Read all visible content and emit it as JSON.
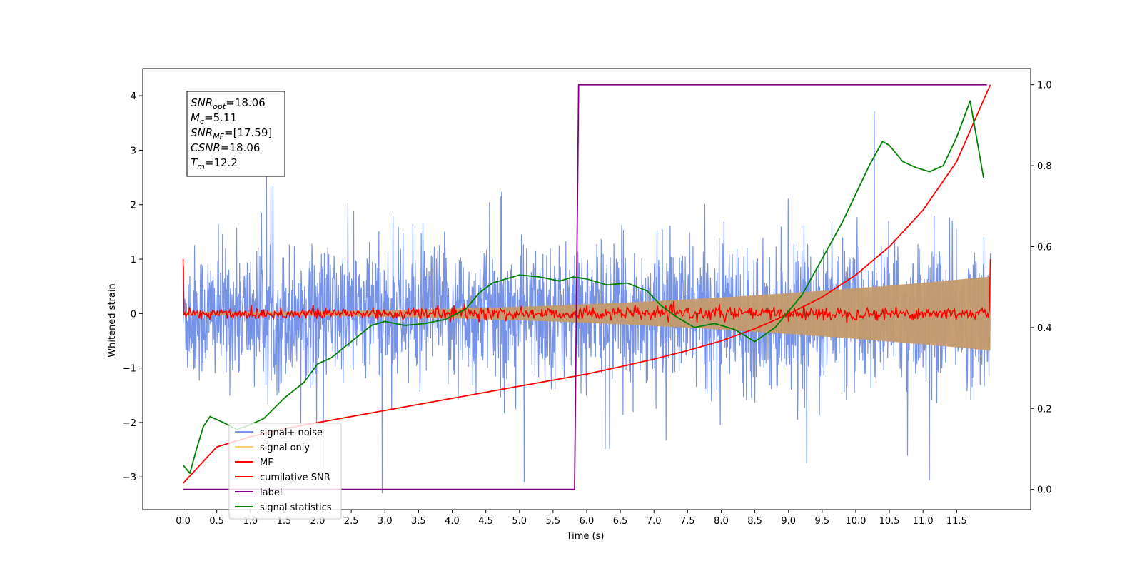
{
  "chart_data": {
    "type": "line",
    "xlabel": "Time (s)",
    "ylabel": "Whitened strain",
    "xlim": [
      -0.6,
      12.6
    ],
    "ylim": [
      -3.6,
      4.5
    ],
    "y2lim": [
      -0.05,
      1.04
    ],
    "x_ticks": [
      0.0,
      0.5,
      1.0,
      1.5,
      2.0,
      2.5,
      3.0,
      3.5,
      4.0,
      4.5,
      5.0,
      5.5,
      6.0,
      6.5,
      7.0,
      7.5,
      8.0,
      8.5,
      9.0,
      9.5,
      10.0,
      10.5,
      11.0,
      11.5
    ],
    "x_tick_labels": [
      "0.0",
      "0.5",
      "1.0",
      "1.5",
      "2.0",
      "2.5",
      "3.0",
      "3.5",
      "4.0",
      "4.5",
      "5.0",
      "5.5",
      "6.0",
      "6.5",
      "7.0",
      "7.5",
      "8.0",
      "8.5",
      "9.0",
      "9.5",
      "10.0",
      "10.5",
      "11.0",
      "11.5"
    ],
    "y_ticks": [
      -3,
      -2,
      -1,
      0,
      1,
      2,
      3,
      4
    ],
    "y_tick_labels": [
      "−3",
      "−2",
      "−1",
      "0",
      "1",
      "2",
      "3",
      "4"
    ],
    "y2_ticks": [
      0.0,
      0.2,
      0.4,
      0.6,
      0.8,
      1.0
    ],
    "y2_tick_labels": [
      "0.0",
      "0.2",
      "0.4",
      "0.6",
      "0.8",
      "1.0"
    ],
    "annotation": [
      {
        "name": "SNR",
        "sub": "opt",
        "value": "=18.06"
      },
      {
        "name": "M",
        "sub": "c",
        "value": "=5.11"
      },
      {
        "name": "SNR",
        "sub": "MF",
        "value": "=[17.59]"
      },
      {
        "name": "CSNR",
        "sub": "",
        "value": "=18.06"
      },
      {
        "name": "T",
        "sub": "m",
        "value": "=12.2"
      }
    ],
    "legend_position": "lower-left",
    "series": [
      {
        "name": "signal+ noise",
        "color": "#6f8de8",
        "axis": "left",
        "kind": "noise",
        "x_range": [
          0,
          12.0
        ],
        "typical_band": [
          -1.4,
          1.4
        ],
        "peak_range": [
          -3.3,
          4.2
        ]
      },
      {
        "name": "signal only",
        "color": "#c49a6c",
        "axis": "left",
        "kind": "chirp",
        "x_range": [
          0,
          12.0
        ],
        "amplitude_start": 0.03,
        "amplitude_end": 0.68
      },
      {
        "name": "MF",
        "color": "#ff0000",
        "axis": "left",
        "kind": "mf",
        "x_range": [
          0,
          12.0
        ],
        "edge_value": 1.0,
        "noise_amplitude": 0.06
      },
      {
        "name": "cumilative SNR",
        "color": "#ff0000",
        "axis": "right",
        "x": [
          0.0,
          0.5,
          1.0,
          1.5,
          2.0,
          2.5,
          3.0,
          3.5,
          4.0,
          4.5,
          5.0,
          5.5,
          6.0,
          6.5,
          7.0,
          7.5,
          8.0,
          8.5,
          9.0,
          9.5,
          10.0,
          10.5,
          11.0,
          11.5,
          12.0
        ],
        "values": [
          0.015,
          0.105,
          0.13,
          0.15,
          0.165,
          0.18,
          0.195,
          0.21,
          0.225,
          0.24,
          0.255,
          0.27,
          0.285,
          0.303,
          0.322,
          0.343,
          0.367,
          0.397,
          0.433,
          0.475,
          0.53,
          0.6,
          0.69,
          0.81,
          1.0
        ]
      },
      {
        "name": "label",
        "color": "#800080",
        "axis": "right",
        "x": [
          0.0,
          5.82,
          5.88,
          11.95
        ],
        "values": [
          0.0,
          0.0,
          1.0,
          1.0
        ]
      },
      {
        "name": "signal statistics",
        "color": "#008000",
        "axis": "right",
        "x": [
          0.0,
          0.1,
          0.2,
          0.3,
          0.4,
          0.6,
          0.8,
          1.0,
          1.2,
          1.5,
          1.8,
          2.0,
          2.2,
          2.5,
          2.8,
          3.0,
          3.3,
          3.6,
          3.9,
          4.2,
          4.4,
          4.6,
          4.8,
          5.0,
          5.3,
          5.6,
          5.8,
          6.0,
          6.3,
          6.6,
          6.9,
          7.1,
          7.3,
          7.6,
          7.9,
          8.2,
          8.5,
          8.8,
          9.0,
          9.2,
          9.4,
          9.6,
          9.8,
          10.0,
          10.2,
          10.4,
          10.5,
          10.7,
          10.9,
          11.1,
          11.3,
          11.5,
          11.7,
          11.9
        ],
        "values": [
          0.06,
          0.04,
          0.1,
          0.155,
          0.18,
          0.165,
          0.148,
          0.16,
          0.175,
          0.225,
          0.265,
          0.31,
          0.325,
          0.365,
          0.405,
          0.415,
          0.405,
          0.41,
          0.42,
          0.445,
          0.485,
          0.51,
          0.52,
          0.53,
          0.525,
          0.515,
          0.525,
          0.52,
          0.505,
          0.51,
          0.49,
          0.455,
          0.43,
          0.4,
          0.41,
          0.395,
          0.365,
          0.4,
          0.44,
          0.48,
          0.54,
          0.6,
          0.66,
          0.73,
          0.8,
          0.86,
          0.85,
          0.81,
          0.795,
          0.785,
          0.8,
          0.87,
          0.96,
          0.77
        ]
      }
    ]
  }
}
